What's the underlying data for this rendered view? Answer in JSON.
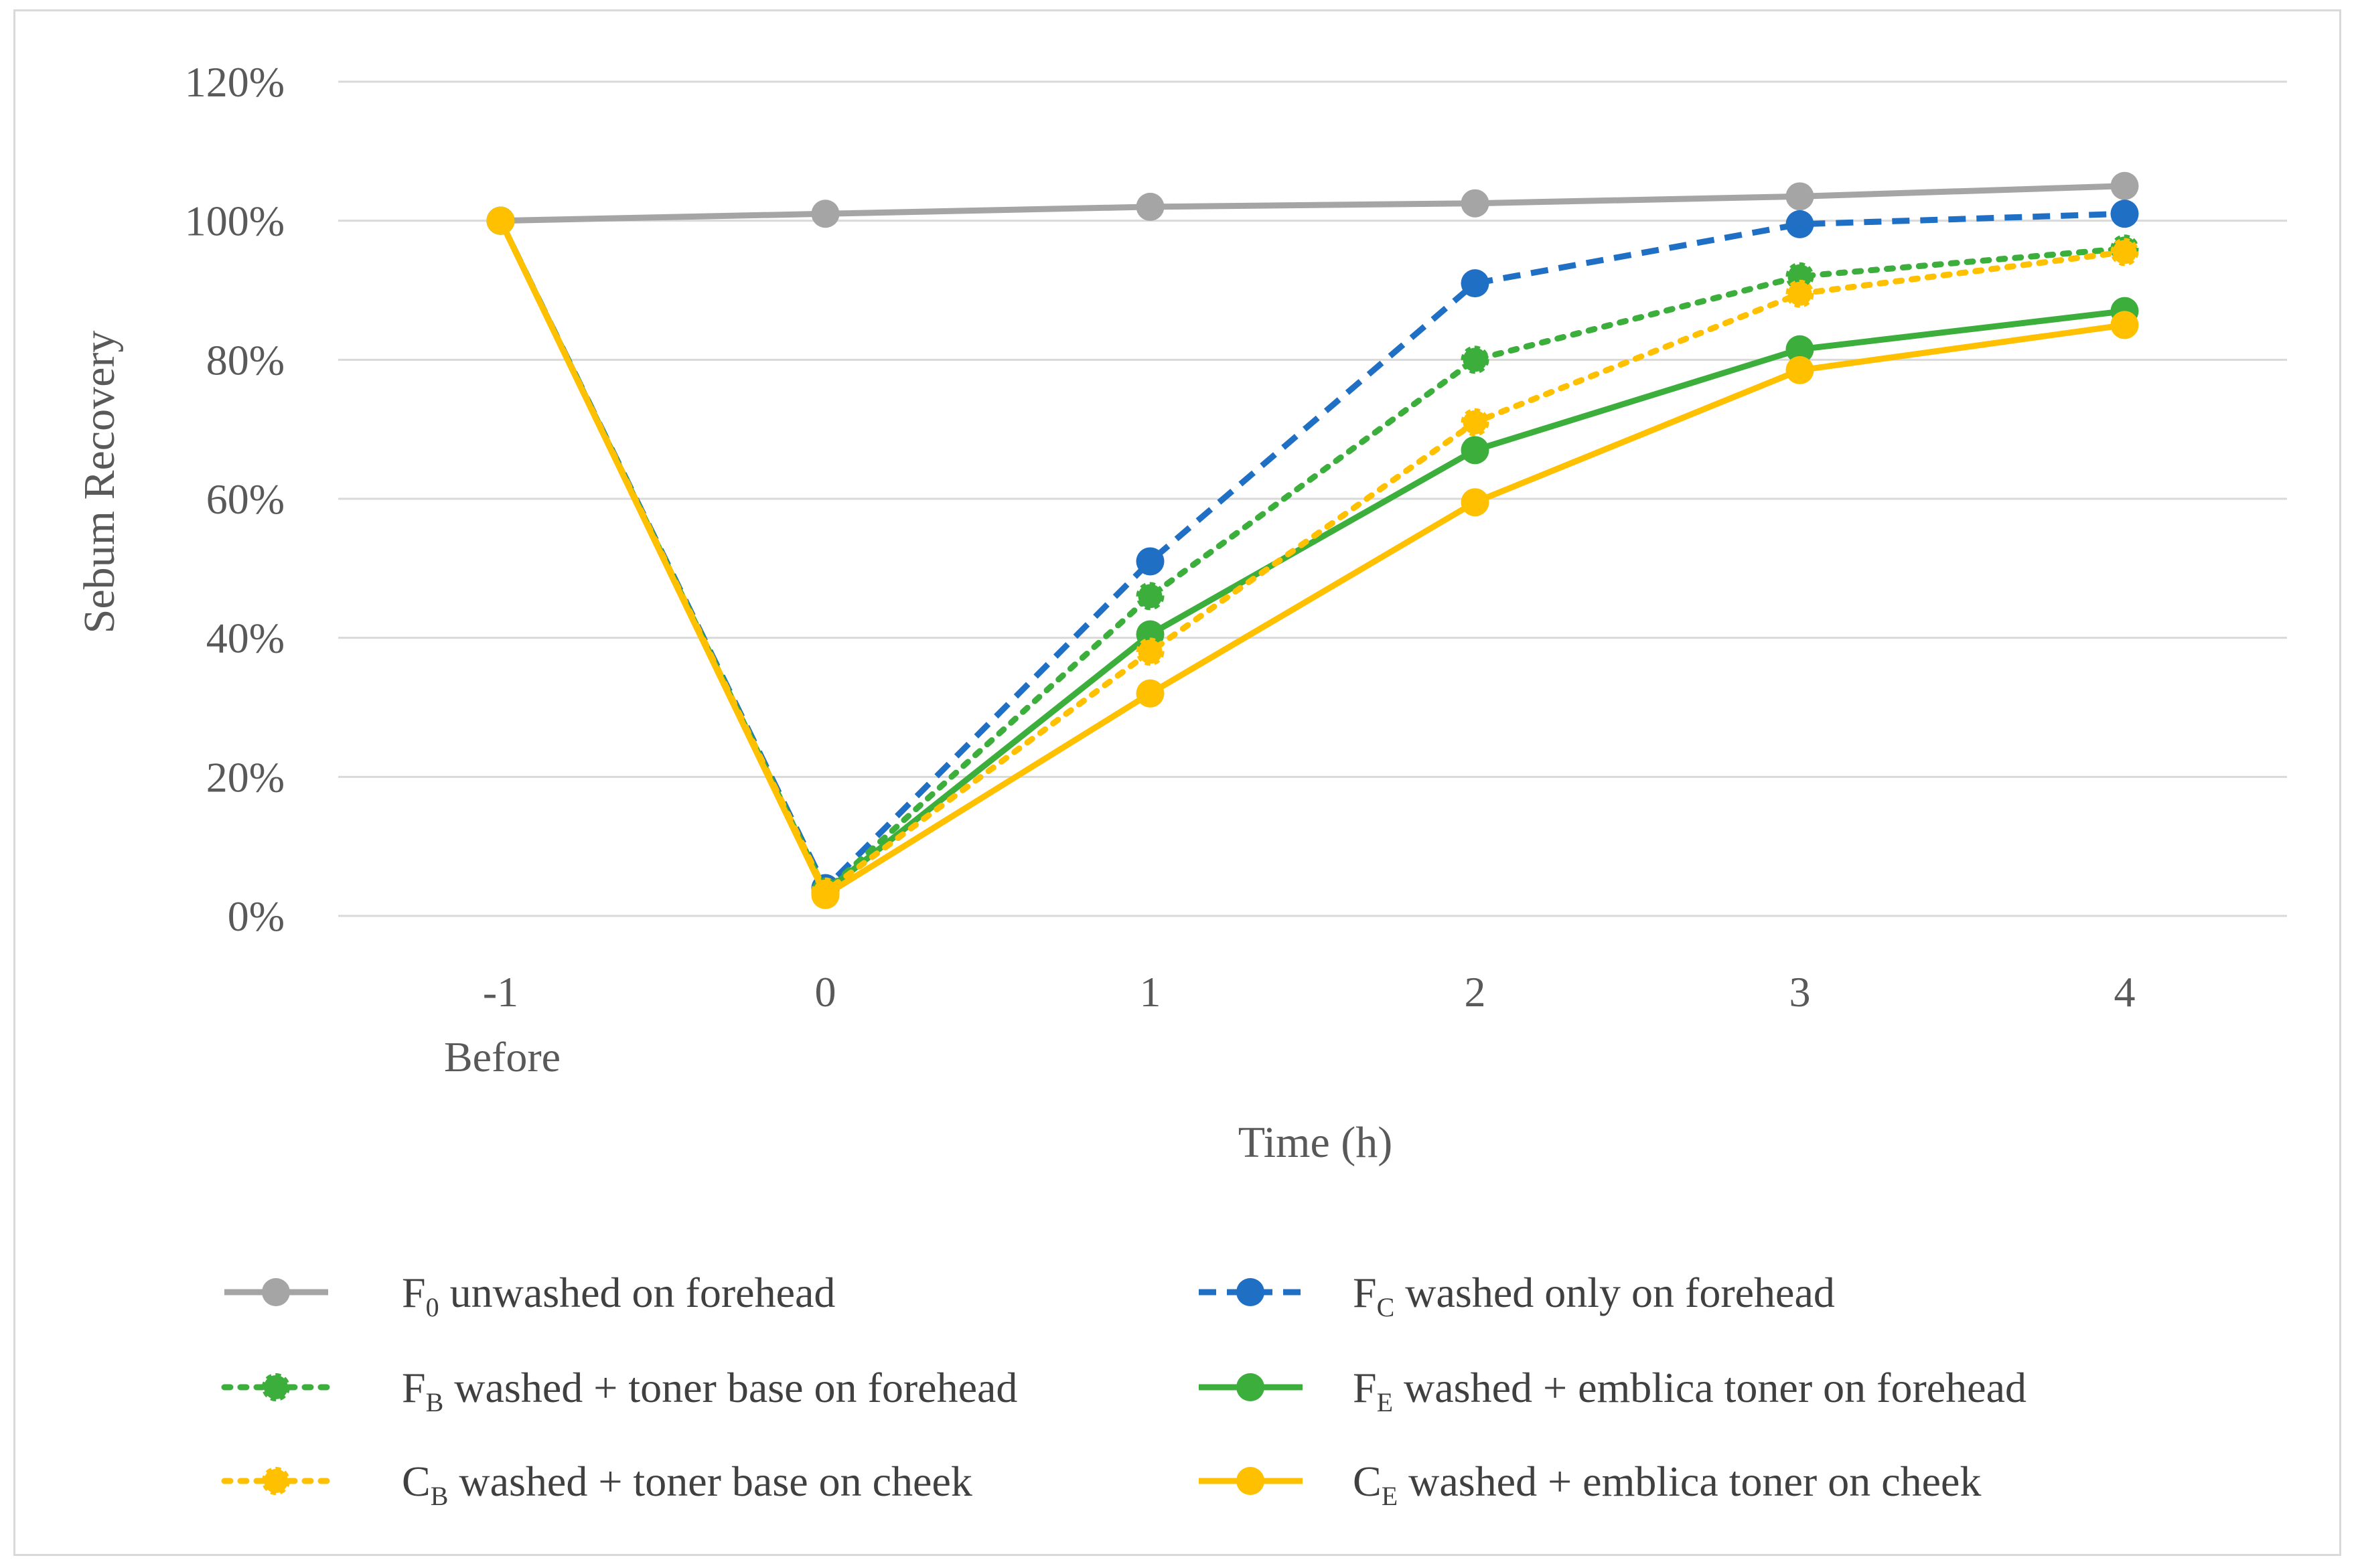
{
  "chart_data": {
    "type": "line",
    "title": "",
    "xlabel": "Time (h)",
    "ylabel": "Sebum Recovery",
    "x": [
      -1,
      0,
      1,
      2,
      3,
      4
    ],
    "x_tick_labels": [
      "-1",
      "0",
      "1",
      "2",
      "3",
      "4"
    ],
    "x_tick_sublabel": "Before",
    "ylim": [
      0,
      1.2
    ],
    "y_ticks": [
      0,
      0.2,
      0.4,
      0.6,
      0.8,
      1.0,
      1.2
    ],
    "y_tick_labels": [
      "0%",
      "20%",
      "40%",
      "60%",
      "80%",
      "100%",
      "120%"
    ],
    "grid": true,
    "legend_position": "bottom",
    "series": [
      {
        "key": "F0",
        "legend": {
          "main": "F",
          "sub": "0",
          "rest": "  unwashed on forehead"
        },
        "color": "#a5a5a5",
        "style": "solid",
        "values": [
          1.0,
          1.01,
          1.02,
          1.025,
          1.035,
          1.05
        ]
      },
      {
        "key": "FC",
        "legend": {
          "main": "F",
          "sub": "C",
          "rest": "  washed only on forehead"
        },
        "color": "#1f6fc5",
        "style": "dashed",
        "values": [
          1.0,
          0.04,
          0.51,
          0.91,
          0.995,
          1.01
        ]
      },
      {
        "key": "FB",
        "legend": {
          "main": "F",
          "sub": "B",
          "rest": "  washed + toner base on forehead"
        },
        "color": "#3cae3c",
        "style": "dotted",
        "values": [
          1.0,
          0.035,
          0.46,
          0.8,
          0.92,
          0.96
        ]
      },
      {
        "key": "FE",
        "legend": {
          "main": "F",
          "sub": "E",
          "rest": "  washed + emblica toner on forehead"
        },
        "color": "#3cae3c",
        "style": "solid",
        "values": [
          1.0,
          0.035,
          0.405,
          0.67,
          0.815,
          0.87
        ]
      },
      {
        "key": "CB",
        "legend": {
          "main": "C",
          "sub": "B",
          "rest": " washed + toner base on cheek"
        },
        "color": "#ffc000",
        "style": "dotted",
        "values": [
          1.0,
          0.035,
          0.38,
          0.71,
          0.895,
          0.955
        ]
      },
      {
        "key": "CE",
        "legend": {
          "main": "C",
          "sub": "E",
          "rest": "  washed + emblica toner on cheek"
        },
        "color": "#ffc000",
        "style": "solid",
        "values": [
          1.0,
          0.03,
          0.32,
          0.595,
          0.785,
          0.85
        ]
      }
    ]
  }
}
